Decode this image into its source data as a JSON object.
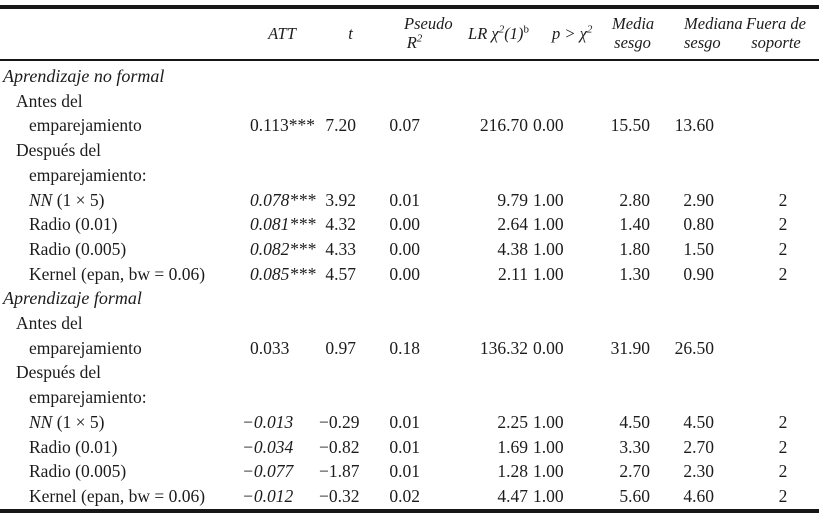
{
  "page": {
    "background": "#ffffff",
    "text_color": "#1c1c1c",
    "rule_color": "#171717"
  },
  "table": {
    "header": {
      "att": "ATT",
      "t": "t",
      "pseudo_line1": "Pseudo",
      "pseudo_base": "R",
      "pseudo_sup": "2",
      "lr_base": "LR χ",
      "lr_sup": "2",
      "lr_paren": "(1)",
      "lr_sup_b": "b",
      "p_base": "p > χ",
      "p_sup": "2",
      "media_line1": "Media",
      "media_line2": "sesgo",
      "mediana_line1": "Mediana",
      "mediana_line2": "sesgo",
      "fuera_line1": "Fuera de",
      "fuera_line2": "soporte"
    },
    "rows": [
      {
        "indent": 0,
        "label": [
          {
            "text": "Aprendizaje no formal",
            "italic": true
          }
        ],
        "cells": {}
      },
      {
        "indent": 1,
        "label": [
          {
            "text": "Antes del"
          }
        ],
        "cells": {}
      },
      {
        "indent": 2,
        "label": [
          {
            "text": "emparejamiento"
          }
        ],
        "cells": {
          "att": "0.113***",
          "t": "7.20",
          "pseudo": "0.07",
          "lr": "216.70",
          "p": "0.00",
          "media": "15.50",
          "mediana": "13.60",
          "fuera": ""
        }
      },
      {
        "indent": 1,
        "label": [
          {
            "text": "Después del"
          }
        ],
        "cells": {}
      },
      {
        "indent": 2,
        "label": [
          {
            "text": "emparejamiento:"
          }
        ],
        "cells": {}
      },
      {
        "indent": 2,
        "label": [
          {
            "text": "NN",
            "italic": true
          },
          {
            "text": " (1 × 5)"
          }
        ],
        "att_italic": true,
        "cells": {
          "att": "0.078***",
          "t": "3.92",
          "pseudo": "0.01",
          "lr": "9.79",
          "p": "1.00",
          "media": "2.80",
          "mediana": "2.90",
          "fuera": "2"
        }
      },
      {
        "indent": 2,
        "label": [
          {
            "text": "Radio (0.01)"
          }
        ],
        "att_italic": true,
        "cells": {
          "att": "0.081***",
          "t": "4.32",
          "pseudo": "0.00",
          "lr": "2.64",
          "p": "1.00",
          "media": "1.40",
          "mediana": "0.80",
          "fuera": "2"
        }
      },
      {
        "indent": 2,
        "label": [
          {
            "text": "Radio (0.005)"
          }
        ],
        "att_italic": true,
        "cells": {
          "att": "0.082***",
          "t": "4.33",
          "pseudo": "0.00",
          "lr": "4.38",
          "p": "1.00",
          "media": "1.80",
          "mediana": "1.50",
          "fuera": "2"
        }
      },
      {
        "indent": 2,
        "label": [
          {
            "text": "Kernel (epan, bw = 0.06)"
          }
        ],
        "att_italic": true,
        "cells": {
          "att": "0.085***",
          "t": "4.57",
          "pseudo": "0.00",
          "lr": "2.11",
          "p": "1.00",
          "media": "1.30",
          "mediana": "0.90",
          "fuera": "2"
        }
      },
      {
        "indent": 0,
        "label": [
          {
            "text": "Aprendizaje formal",
            "italic": true
          }
        ],
        "cells": {}
      },
      {
        "indent": 1,
        "label": [
          {
            "text": "Antes del"
          }
        ],
        "cells": {}
      },
      {
        "indent": 2,
        "label": [
          {
            "text": "emparejamiento"
          }
        ],
        "cells": {
          "att": "0.033",
          "t": "0.97",
          "pseudo": "0.18",
          "lr": "136.32",
          "p": "0.00",
          "media": "31.90",
          "mediana": "26.50",
          "fuera": ""
        }
      },
      {
        "indent": 1,
        "label": [
          {
            "text": "Después del"
          }
        ],
        "cells": {}
      },
      {
        "indent": 2,
        "label": [
          {
            "text": "emparejamiento:"
          }
        ],
        "cells": {}
      },
      {
        "indent": 2,
        "label": [
          {
            "text": "NN",
            "italic": true
          },
          {
            "text": " (1 × 5)"
          }
        ],
        "att_italic": true,
        "cells": {
          "att": "−0.013",
          "t": "−0.29",
          "pseudo": "0.01",
          "lr": "2.25",
          "p": "1.00",
          "media": "4.50",
          "mediana": "4.50",
          "fuera": "2"
        }
      },
      {
        "indent": 2,
        "label": [
          {
            "text": "Radio (0.01)"
          }
        ],
        "att_italic": true,
        "cells": {
          "att": "−0.034",
          "t": "−0.82",
          "pseudo": "0.01",
          "lr": "1.69",
          "p": "1.00",
          "media": "3.30",
          "mediana": "2.70",
          "fuera": "2"
        }
      },
      {
        "indent": 2,
        "label": [
          {
            "text": "Radio (0.005)"
          }
        ],
        "att_italic": true,
        "cells": {
          "att": "−0.077",
          "t": "−1.87",
          "pseudo": "0.01",
          "lr": "1.28",
          "p": "1.00",
          "media": "2.70",
          "mediana": "2.30",
          "fuera": "2"
        }
      },
      {
        "indent": 2,
        "label": [
          {
            "text": "Kernel (epan, bw = 0.06)"
          }
        ],
        "att_italic": true,
        "cells": {
          "att": "−0.012",
          "t": "−0.32",
          "pseudo": "0.02",
          "lr": "4.47",
          "p": "1.00",
          "media": "5.60",
          "mediana": "4.60",
          "fuera": "2"
        }
      }
    ]
  }
}
